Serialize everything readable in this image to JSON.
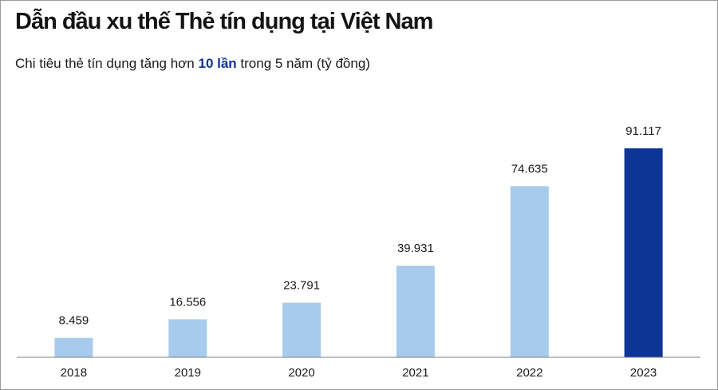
{
  "header": {
    "title": "Dẫn đầu xu thế Thẻ tín dụng tại Việt Nam",
    "subtitle_before": "Chi tiêu thẻ tín dụng tăng hơn ",
    "subtitle_highlight": "10 lần",
    "subtitle_after": " trong 5 năm (tỷ đồng)"
  },
  "chart_data": {
    "type": "bar",
    "title": "Dẫn đầu xu thế Thẻ tín dụng tại Việt Nam",
    "subtitle": "Chi tiêu thẻ tín dụng tăng hơn 10 lần trong 5 năm (tỷ đồng)",
    "xlabel": "",
    "ylabel": "",
    "categories": [
      "2018",
      "2019",
      "2020",
      "2021",
      "2022",
      "2023"
    ],
    "values": [
      8459,
      16556,
      23791,
      39931,
      74635,
      91117
    ],
    "value_labels": [
      "8.459",
      "16.556",
      "23.791",
      "39.931",
      "74.635",
      "91.117"
    ],
    "ylim": [
      0,
      91117
    ],
    "grid": false,
    "legend": "none",
    "colors": {
      "bar": "#a7cbec",
      "highlight_bar": "#0c3596",
      "axis": "#7f7f7f"
    },
    "highlight_index": 5
  }
}
